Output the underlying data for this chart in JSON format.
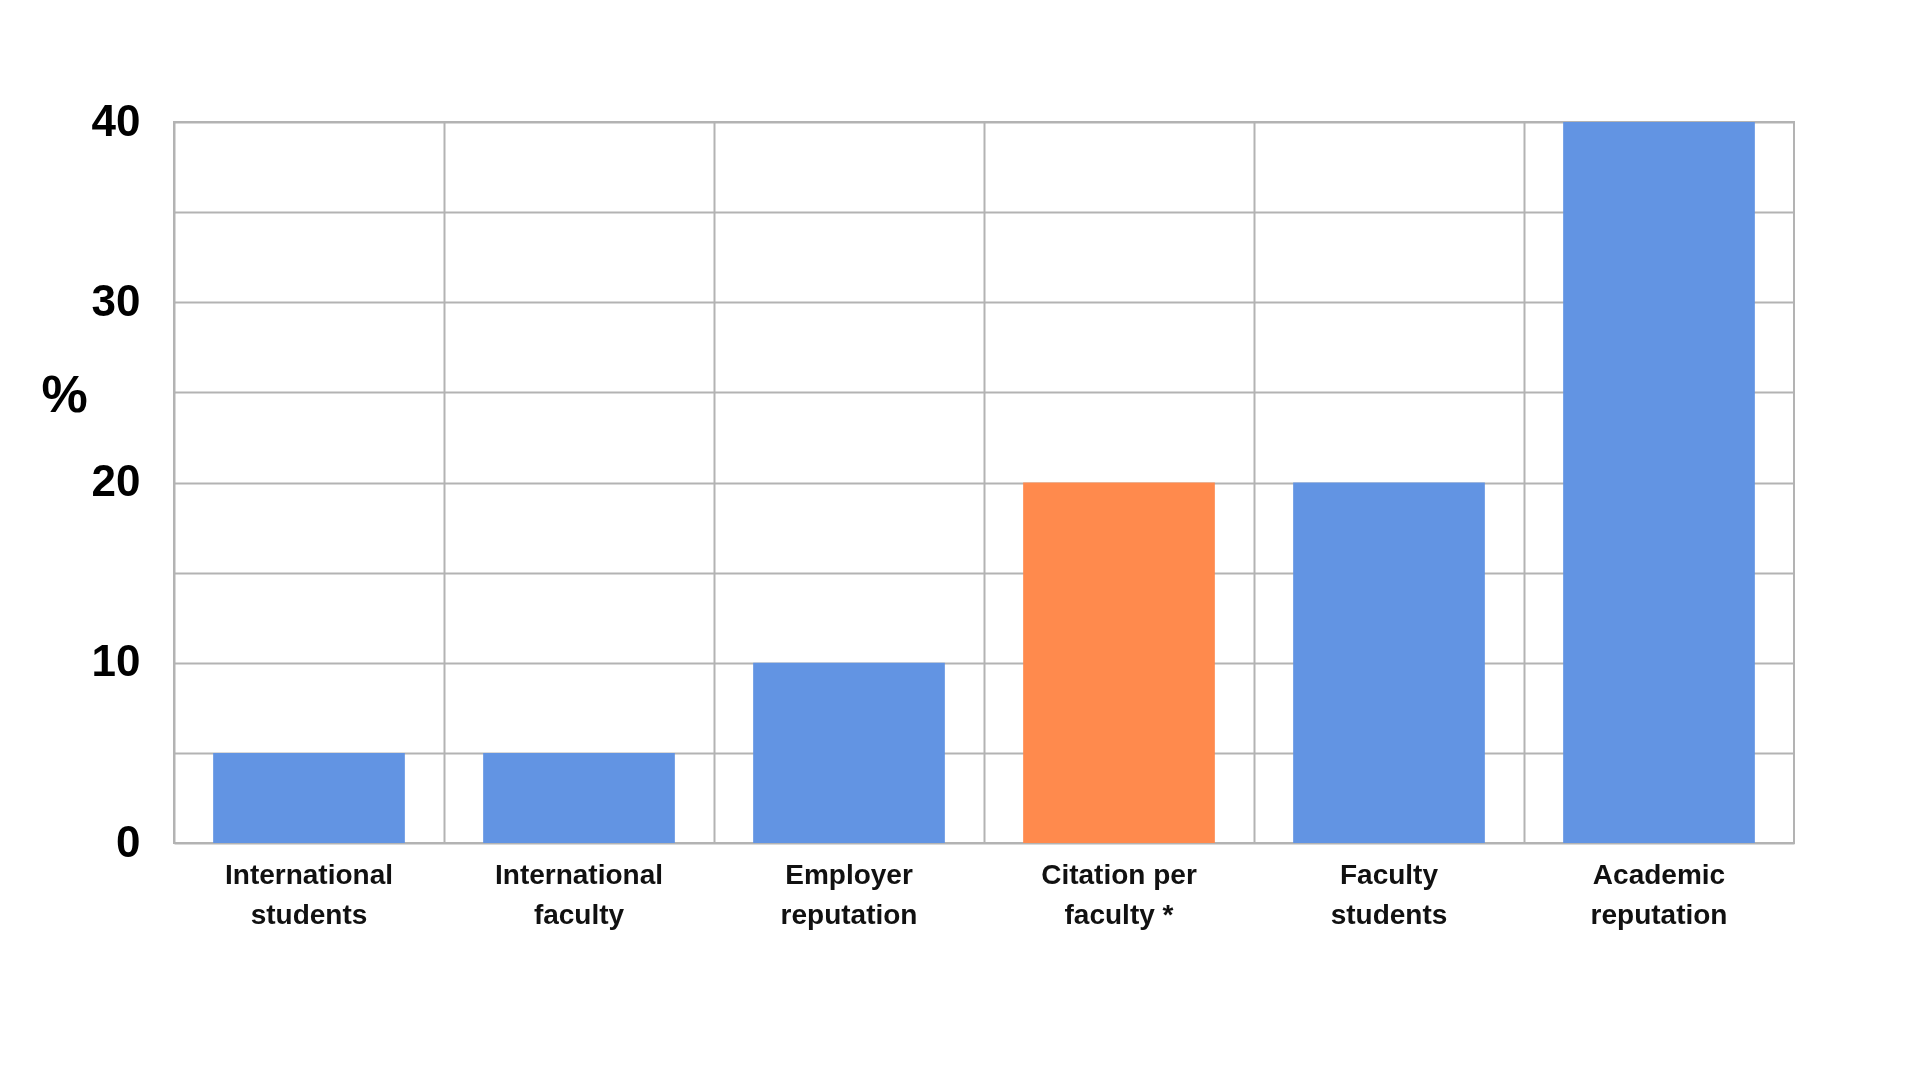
{
  "chart_data": {
    "type": "bar",
    "ylabel": "%",
    "categories": [
      "International\nstudents",
      "International\nfaculty",
      "Employer\nreputation",
      "Citation per\nfaculty *",
      "Faculty\nstudents",
      "Academic\nreputation"
    ],
    "values": [
      5,
      5,
      10,
      20,
      20,
      40
    ],
    "colors": [
      "#6294e3",
      "#6294e3",
      "#6294e3",
      "#ff8a4d",
      "#6294e3",
      "#6294e3"
    ],
    "ylim": [
      0,
      40
    ],
    "yticks": [
      0,
      {
        "value": 5,
        "label": null
      },
      10,
      {
        "value": 15,
        "label": null
      },
      20,
      {
        "value": 25,
        "label": null
      },
      30,
      {
        "value": 35,
        "label": null
      },
      40
    ],
    "grid": true
  }
}
